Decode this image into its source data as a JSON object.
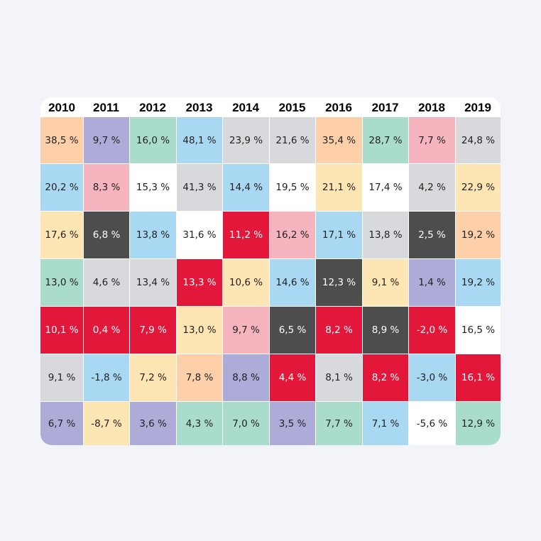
{
  "chart_data": {
    "type": "table",
    "years": [
      "2010",
      "2011",
      "2012",
      "2013",
      "2014",
      "2015",
      "2016",
      "2017",
      "2018",
      "2019"
    ],
    "columns": [
      [
        {
          "text": "38,5 %",
          "value": 38.5,
          "color": "#fdd0aa"
        },
        {
          "text": "20,2 %",
          "value": 20.2,
          "color": "#a9d8f2"
        },
        {
          "text": "17,6 %",
          "value": 17.6,
          "color": "#fde6b4"
        },
        {
          "text": "13,0 %",
          "value": 13.0,
          "color": "#a9dccb"
        },
        {
          "text": "10,1 %",
          "value": 10.1,
          "color": "#e3173a"
        },
        {
          "text": "9,1 %",
          "value": 9.1,
          "color": "#d8d9dc"
        },
        {
          "text": "6,7 %",
          "value": 6.7,
          "color": "#adacd8"
        }
      ],
      [
        {
          "text": "9,7 %",
          "value": 9.7,
          "color": "#adacd8"
        },
        {
          "text": "8,3 %",
          "value": 8.3,
          "color": "#f6b5be"
        },
        {
          "text": "6,8 %",
          "value": 6.8,
          "color": "#4d4d4d"
        },
        {
          "text": "4,6 %",
          "value": 4.6,
          "color": "#d8d9dc"
        },
        {
          "text": "0,4 %",
          "value": 0.4,
          "color": "#e3173a"
        },
        {
          "text": "-1,8 %",
          "value": -1.8,
          "color": "#a9d8f2"
        },
        {
          "text": "-8,7 %",
          "value": -8.7,
          "color": "#fde6b4"
        }
      ],
      [
        {
          "text": "16,0 %",
          "value": 16.0,
          "color": "#a9dccb"
        },
        {
          "text": "15,3 %",
          "value": 15.3,
          "color": "#ffffff"
        },
        {
          "text": "13,8 %",
          "value": 13.8,
          "color": "#a9d8f2"
        },
        {
          "text": "13,4 %",
          "value": 13.4,
          "color": "#d8d9dc"
        },
        {
          "text": "7,9 %",
          "value": 7.9,
          "color": "#e3173a"
        },
        {
          "text": "7,2 %",
          "value": 7.2,
          "color": "#fde6b4"
        },
        {
          "text": "3,6 %",
          "value": 3.6,
          "color": "#adacd8"
        }
      ],
      [
        {
          "text": "48,1 %",
          "value": 48.1,
          "color": "#a9d8f2"
        },
        {
          "text": "41,3 %",
          "value": 41.3,
          "color": "#d8d9dc"
        },
        {
          "text": "31,6 %",
          "value": 31.6,
          "color": "#ffffff"
        },
        {
          "text": "13,3 %",
          "value": 13.3,
          "color": "#e3173a"
        },
        {
          "text": "13,0 %",
          "value": 13.0,
          "color": "#fde6b4"
        },
        {
          "text": "7,8 %",
          "value": 7.8,
          "color": "#fdd0aa"
        },
        {
          "text": "4,3 %",
          "value": 4.3,
          "color": "#a9dccb"
        }
      ],
      [
        {
          "text": "23,9 %",
          "value": 23.9,
          "color": "#d8d9dc"
        },
        {
          "text": "14,4 %",
          "value": 14.4,
          "color": "#a9d8f2"
        },
        {
          "text": "11,2 %",
          "value": 11.2,
          "color": "#e3173a"
        },
        {
          "text": "10,6 %",
          "value": 10.6,
          "color": "#fde6b4"
        },
        {
          "text": "9,7 %",
          "value": 9.7,
          "color": "#f6b5be"
        },
        {
          "text": "8,8 %",
          "value": 8.8,
          "color": "#adacd8"
        },
        {
          "text": "7,0 %",
          "value": 7.0,
          "color": "#a9dccb"
        }
      ],
      [
        {
          "text": "21,6 %",
          "value": 21.6,
          "color": "#d8d9dc"
        },
        {
          "text": "19,5 %",
          "value": 19.5,
          "color": "#ffffff"
        },
        {
          "text": "16,2 %",
          "value": 16.2,
          "color": "#f6b5be"
        },
        {
          "text": "14,6 %",
          "value": 14.6,
          "color": "#a9d8f2"
        },
        {
          "text": "6,5 %",
          "value": 6.5,
          "color": "#4d4d4d"
        },
        {
          "text": "4,4 %",
          "value": 4.4,
          "color": "#e3173a"
        },
        {
          "text": "3,5 %",
          "value": 3.5,
          "color": "#adacd8"
        }
      ],
      [
        {
          "text": "35,4 %",
          "value": 35.4,
          "color": "#fdd0aa"
        },
        {
          "text": "21,1 %",
          "value": 21.1,
          "color": "#fde6b4"
        },
        {
          "text": "17,1 %",
          "value": 17.1,
          "color": "#a9d8f2"
        },
        {
          "text": "12,3 %",
          "value": 12.3,
          "color": "#4d4d4d"
        },
        {
          "text": "8,2 %",
          "value": 8.2,
          "color": "#e3173a"
        },
        {
          "text": "8,1 %",
          "value": 8.1,
          "color": "#d8d9dc"
        },
        {
          "text": "7,7 %",
          "value": 7.7,
          "color": "#a9dccb"
        }
      ],
      [
        {
          "text": "28,7 %",
          "value": 28.7,
          "color": "#a9dccb"
        },
        {
          "text": "17,4 %",
          "value": 17.4,
          "color": "#ffffff"
        },
        {
          "text": "13,8 %",
          "value": 13.8,
          "color": "#d8d9dc"
        },
        {
          "text": "9,1 %",
          "value": 9.1,
          "color": "#fde6b4"
        },
        {
          "text": "8,9 %",
          "value": 8.9,
          "color": "#4d4d4d"
        },
        {
          "text": "8,2 %",
          "value": 8.2,
          "color": "#e3173a"
        },
        {
          "text": "7,1 %",
          "value": 7.1,
          "color": "#a9d8f2"
        }
      ],
      [
        {
          "text": "7,7 %",
          "value": 7.7,
          "color": "#f6b5be"
        },
        {
          "text": "4,2 %",
          "value": 4.2,
          "color": "#d8d9dc"
        },
        {
          "text": "2,5 %",
          "value": 2.5,
          "color": "#4d4d4d"
        },
        {
          "text": "1,4 %",
          "value": 1.4,
          "color": "#adacd8"
        },
        {
          "text": "-2,0 %",
          "value": -2.0,
          "color": "#e3173a"
        },
        {
          "text": "-3,0 %",
          "value": -3.0,
          "color": "#a9d8f2"
        },
        {
          "text": "-5,6 %",
          "value": -5.6,
          "color": "#ffffff"
        }
      ],
      [
        {
          "text": "24,8 %",
          "value": 24.8,
          "color": "#d8d9dc"
        },
        {
          "text": "22,9 %",
          "value": 22.9,
          "color": "#fde6b4"
        },
        {
          "text": "19,2 %",
          "value": 19.2,
          "color": "#fdd0aa"
        },
        {
          "text": "19,2 %",
          "value": 19.2,
          "color": "#a9d8f2"
        },
        {
          "text": "16,5 %",
          "value": 16.5,
          "color": "#ffffff"
        },
        {
          "text": "16,1 %",
          "value": 16.1,
          "color": "#e3173a"
        },
        {
          "text": "12,9 %",
          "value": 12.9,
          "color": "#a9dccb"
        }
      ]
    ]
  }
}
